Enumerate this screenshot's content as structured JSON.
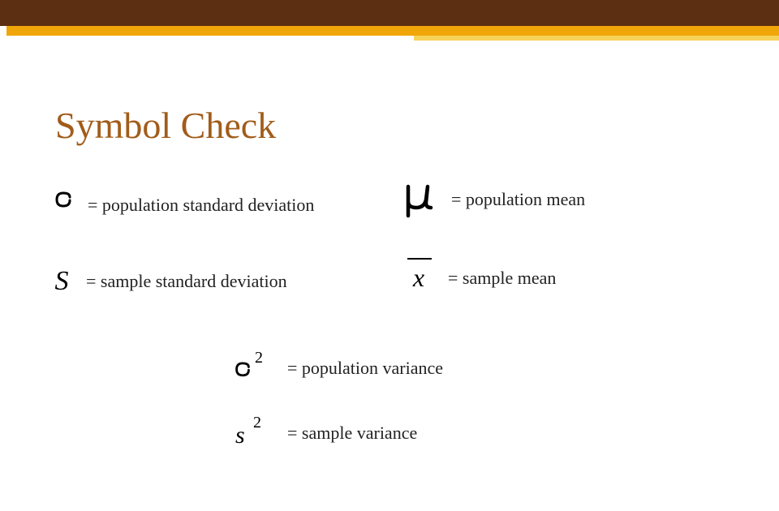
{
  "colors": {
    "band_primary": "#5c2e12",
    "band_secondary": "#f0a608",
    "band_tertiary": "#f7d25a",
    "title_color": "#a15c1a",
    "text_color": "#222222",
    "bg": "#ffffff"
  },
  "title": "Symbol Check",
  "title_fontsize": 46,
  "items": {
    "sigma": {
      "label": "= population standard deviation"
    },
    "s": {
      "label": "= sample standard deviation"
    },
    "mu": {
      "label": "= population mean"
    },
    "xbar": {
      "label": "= sample mean"
    },
    "sigma2": {
      "label": "= population variance"
    },
    "s2": {
      "label": "= sample variance"
    }
  },
  "style": {
    "desc_fontsize": 22,
    "symbol_fontsize": 30,
    "symbol_fontsize_large": 40
  }
}
